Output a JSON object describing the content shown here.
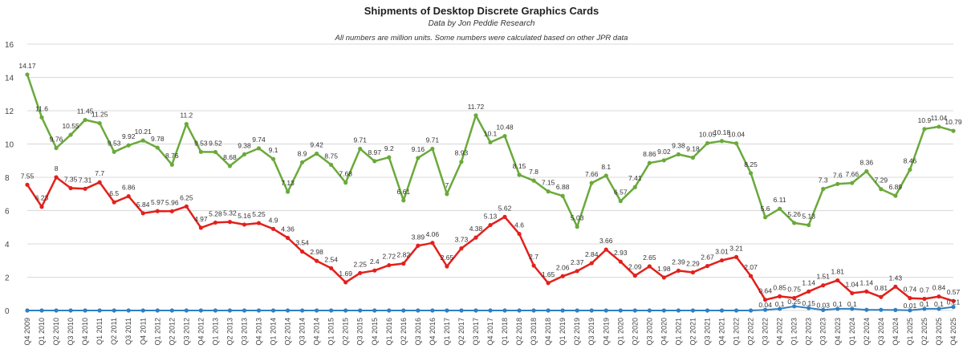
{
  "chart_data": {
    "type": "line",
    "title": "Shipments of Desktop Discrete Graphics Cards",
    "subtitle": "Data by Jon Peddie Research",
    "note": "All numbers are million units. Some numbers were calculated based on other JPR data",
    "ylim": [
      0,
      16
    ],
    "yticks": [
      0,
      2,
      4,
      6,
      8,
      10,
      12,
      14,
      16
    ],
    "grid": true,
    "categories": [
      "Q4 2009",
      "Q1 2010",
      "Q2 2010",
      "Q3 2010",
      "Q4 2010",
      "Q1 2011",
      "Q2 2011",
      "Q3 2011",
      "Q4 2011",
      "Q1 2012",
      "Q2 2012",
      "Q3 2012",
      "Q4 2012",
      "Q1 2013",
      "Q2 2013",
      "Q3 2013",
      "Q4 2013",
      "Q1 2014",
      "Q2 2014",
      "Q3 2014",
      "Q4 2014",
      "Q1 2015",
      "Q2 2015",
      "Q3 2015",
      "Q4 2015",
      "Q1 2016",
      "Q2 2016",
      "Q3 2016",
      "Q4 2016",
      "Q1 2017",
      "Q2 2017",
      "Q3 2017",
      "Q4 2017",
      "Q1 2018",
      "Q2 2018",
      "Q3 2018",
      "Q4 2018",
      "Q1 2019",
      "Q2 2019",
      "Q3 2019",
      "Q4 2019",
      "Q1 2020",
      "Q2 2020",
      "Q3 2020",
      "Q4 2020",
      "Q1 2021",
      "Q2 2021",
      "Q3 2021",
      "Q4 2021",
      "Q1 2022",
      "Q2 2022",
      "Q3 2022",
      "Q4 2022",
      "Q1 2023",
      "Q2 2023",
      "Q3 2023",
      "Q4 2023",
      "Q1 2024",
      "Q2 2024",
      "Q3 2024",
      "Q4 2024",
      "Q1 2025",
      "Q2 2025",
      "Q3 2025",
      "Q4 2025"
    ],
    "series": [
      {
        "color": "#6aa93b",
        "values": [
          14.17,
          11.6,
          9.76,
          10.55,
          11.45,
          11.25,
          9.53,
          9.92,
          10.21,
          9.78,
          8.76,
          11.2,
          9.53,
          9.52,
          8.68,
          9.38,
          9.74,
          9.1,
          7.13,
          8.9,
          9.42,
          8.75,
          7.68,
          9.71,
          8.97,
          9.2,
          6.61,
          9.16,
          9.71,
          7,
          8.93,
          11.72,
          10.1,
          10.48,
          8.15,
          7.8,
          7.15,
          6.88,
          5.03,
          7.66,
          8.1,
          6.57,
          7.41,
          8.86,
          9.02,
          9.38,
          9.18,
          10.05,
          10.18,
          10.04,
          8.25,
          5.6,
          6.11,
          5.26,
          5.13,
          7.3,
          7.6,
          7.66,
          8.36,
          7.29,
          6.89,
          8.46,
          10.9,
          11.04,
          10.79
        ]
      },
      {
        "color": "#e3201b",
        "values": [
          7.55,
          6.23,
          8,
          7.35,
          7.31,
          7.7,
          6.5,
          6.86,
          5.84,
          5.97,
          5.96,
          6.25,
          4.97,
          5.28,
          5.32,
          5.16,
          5.25,
          4.9,
          4.36,
          3.54,
          2.98,
          2.54,
          1.69,
          2.25,
          2.4,
          2.72,
          2.82,
          3.89,
          4.06,
          2.65,
          3.73,
          4.38,
          5.13,
          5.62,
          4.6,
          2.7,
          1.65,
          2.06,
          2.37,
          2.84,
          3.66,
          2.93,
          2.09,
          2.65,
          1.98,
          2.39,
          2.29,
          2.67,
          3.01,
          3.21,
          2.07,
          0.64,
          0.85,
          0.75,
          1.14,
          1.51,
          1.81,
          1.04,
          1.14,
          0.81,
          1.43,
          0.74,
          0.7,
          0.84,
          0.57
        ]
      },
      {
        "color": "#2f7fc1",
        "values": [
          0,
          0,
          0,
          0,
          0,
          0,
          0,
          0,
          0,
          0,
          0,
          0,
          0,
          0,
          0,
          0,
          0,
          0,
          0,
          0,
          0,
          0,
          0,
          0,
          0,
          0,
          0,
          0,
          0,
          0,
          0,
          0,
          0,
          0,
          0,
          0,
          0,
          0,
          0,
          0,
          0,
          0,
          0,
          0,
          0,
          0,
          0,
          0,
          0,
          0,
          0,
          0.04,
          0.1,
          0.25,
          0.15,
          0.03,
          0.1,
          0.1,
          0.04,
          0.04,
          0.03,
          0.01,
          0.1,
          0.1,
          0.21
        ]
      }
    ],
    "data_label_text": {
      "2": [
        "",
        "",
        "",
        "",
        "",
        "",
        "",
        "",
        "",
        "",
        "",
        "",
        "",
        "",
        "",
        "",
        "",
        "",
        "",
        "",
        "",
        "",
        "",
        "",
        "",
        "",
        "",
        "",
        "",
        "",
        "",
        "",
        "",
        "",
        "",
        "",
        "",
        "",
        "",
        "",
        "",
        "",
        "",
        "",
        "",
        "",
        "",
        "",
        "",
        "",
        "",
        "0.04",
        "0.1",
        "0.25",
        "0.15",
        "0.03",
        "0.1",
        "0.1",
        "",
        "",
        "",
        "0.01",
        "0.1",
        "0.1",
        "0.21"
      ]
    }
  }
}
